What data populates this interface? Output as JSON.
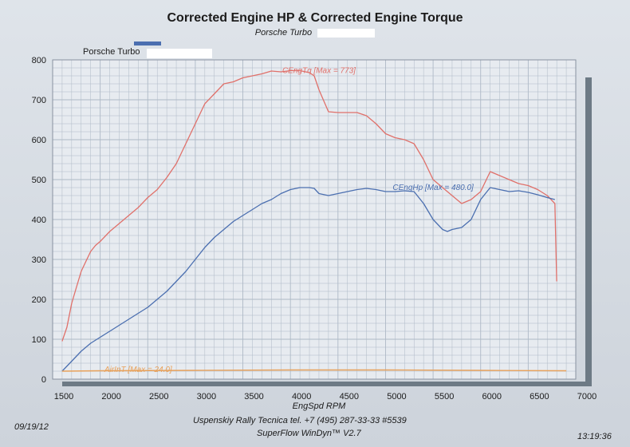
{
  "header": {
    "title": "Corrected Engine HP & Corrected Engine Torque",
    "subtitle": "Porsche Turbo",
    "legend_label": "Porsche Turbo"
  },
  "footer": {
    "date": "09/19/12",
    "company": "Uspenskiy Rally Tecnica   tel. +7 (495) 287-33-33 #5539",
    "software": "SuperFlow WinDyn™ V2.7",
    "time": "13:19:36"
  },
  "colors": {
    "torque": "#e0706a",
    "hp": "#4b6fb0",
    "air": "#e8a15a",
    "legend_swatch": "#4b6fb0",
    "grid": "#aeb9c6",
    "frame": "#6d7a85"
  },
  "chart_data": {
    "type": "line",
    "xlabel": "EngSpd  RPM",
    "ylabel": "",
    "xlim": [
      1500,
      7000
    ],
    "ylim": [
      0,
      800
    ],
    "x_ticks": [
      1500,
      2000,
      2500,
      3000,
      3500,
      4000,
      4500,
      5000,
      5500,
      6000,
      6500,
      7000
    ],
    "y_ticks": [
      0,
      100,
      200,
      300,
      400,
      500,
      600,
      700,
      800
    ],
    "grid": true,
    "series": [
      {
        "name": "CEngTq",
        "annotation": "CEngTq [Max = 773]",
        "x": [
          1600,
          1650,
          1700,
          1750,
          1800,
          1850,
          1900,
          1950,
          2000,
          2100,
          2200,
          2300,
          2400,
          2500,
          2600,
          2700,
          2800,
          2900,
          3000,
          3100,
          3200,
          3300,
          3400,
          3500,
          3600,
          3700,
          3800,
          3900,
          4000,
          4100,
          4200,
          4250,
          4300,
          4400,
          4500,
          4600,
          4700,
          4800,
          4900,
          5000,
          5100,
          5200,
          5300,
          5400,
          5500,
          5600,
          5700,
          5800,
          5900,
          6000,
          6100,
          6200,
          6300,
          6400,
          6500,
          6600,
          6700,
          6780,
          6800
        ],
        "values": [
          95,
          130,
          190,
          230,
          270,
          295,
          320,
          335,
          345,
          370,
          390,
          410,
          430,
          455,
          475,
          505,
          540,
          590,
          640,
          690,
          715,
          740,
          745,
          755,
          760,
          765,
          772,
          770,
          773,
          773,
          768,
          760,
          725,
          670,
          668,
          668,
          668,
          660,
          640,
          615,
          605,
          600,
          590,
          550,
          500,
          480,
          460,
          440,
          450,
          470,
          520,
          510,
          500,
          490,
          485,
          475,
          460,
          440,
          245
        ]
      },
      {
        "name": "CEngHp",
        "annotation": "CEngHp [Max = 480.0]",
        "x": [
          1600,
          1700,
          1800,
          1900,
          2000,
          2100,
          2200,
          2300,
          2400,
          2500,
          2600,
          2700,
          2800,
          2900,
          3000,
          3100,
          3200,
          3300,
          3400,
          3500,
          3600,
          3700,
          3800,
          3900,
          4000,
          4100,
          4200,
          4250,
          4300,
          4400,
          4500,
          4600,
          4700,
          4800,
          4900,
          5000,
          5100,
          5200,
          5300,
          5400,
          5500,
          5600,
          5650,
          5700,
          5800,
          5900,
          6000,
          6100,
          6200,
          6300,
          6400,
          6500,
          6600,
          6700,
          6780
        ],
        "values": [
          20,
          45,
          70,
          90,
          105,
          120,
          135,
          150,
          165,
          180,
          200,
          220,
          245,
          270,
          300,
          330,
          355,
          375,
          395,
          410,
          425,
          440,
          450,
          465,
          475,
          480,
          480,
          478,
          465,
          460,
          465,
          470,
          475,
          478,
          475,
          470,
          470,
          472,
          470,
          440,
          400,
          375,
          370,
          375,
          380,
          400,
          450,
          480,
          475,
          470,
          472,
          468,
          462,
          455,
          450
        ]
      },
      {
        "name": "AirInT",
        "annotation": "AirInT [Max = 24.0]",
        "x": [
          1600,
          2000,
          3000,
          4000,
          5000,
          6000,
          6900
        ],
        "values": [
          20,
          21,
          22,
          23,
          23,
          22,
          21
        ]
      }
    ]
  }
}
